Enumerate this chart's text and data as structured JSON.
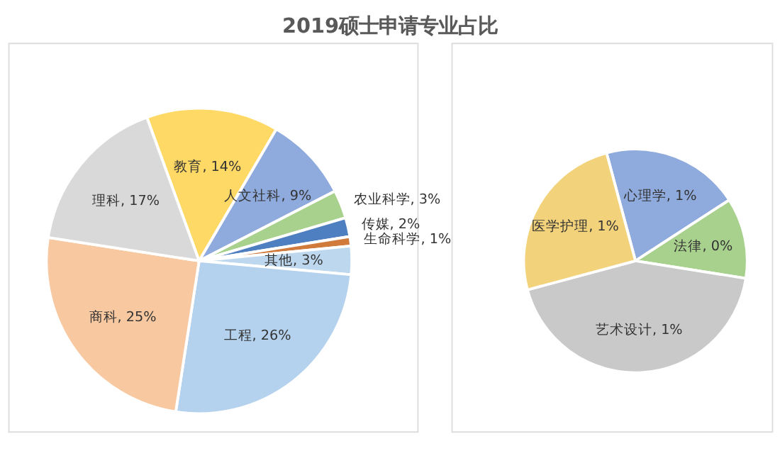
{
  "chart_data": [
    {
      "type": "pie",
      "title": "2019硕士申请专业占比",
      "categories": [
        "教育",
        "人文社科",
        "农业科学",
        "传媒",
        "生命科学",
        "其他",
        "工程",
        "商科",
        "理科"
      ],
      "values": [
        14,
        9,
        3,
        2,
        1,
        3,
        26,
        25,
        17
      ],
      "colors": [
        "#ffd966",
        "#8faadc",
        "#a9d18e",
        "#4e7fc0",
        "#d07a3c",
        "#bdd7ee",
        "#b4d2ee",
        "#f8c8a0",
        "#d9d9d9"
      ],
      "value_labels": [
        "14%",
        "9%",
        "3%",
        "2%",
        "1%",
        "3%",
        "26%",
        "25%",
        "17%"
      ],
      "legend": false
    },
    {
      "type": "pie",
      "categories": [
        "心理学",
        "法律",
        "艺术设计",
        "医学护理"
      ],
      "values": [
        0.6,
        0.35,
        1.3,
        0.75
      ],
      "colors": [
        "#8faadc",
        "#a9d18e",
        "#c9c9c9",
        "#f2d27a"
      ],
      "value_labels": [
        "1%",
        "0%",
        "1%",
        "1%"
      ],
      "legend": false
    }
  ]
}
